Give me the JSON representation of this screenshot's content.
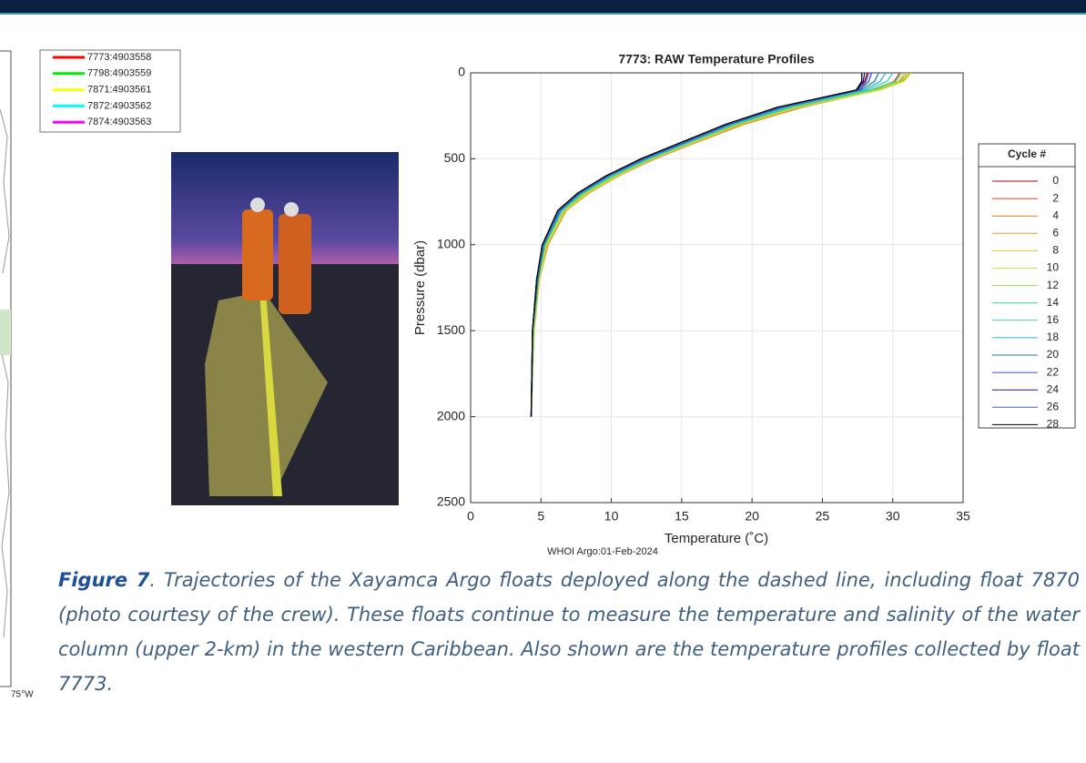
{
  "map": {
    "legend": [
      {
        "name": "7773:4903558",
        "color": "#ff0000"
      },
      {
        "name": "7798:4903559",
        "color": "#00ee00"
      },
      {
        "name": "7871:4903561",
        "color": "#ffff00"
      },
      {
        "name": "7872:4903562",
        "color": "#00ffff"
      },
      {
        "name": "7874:4903563",
        "color": "#ff00ff"
      }
    ],
    "lon_label": "75°W"
  },
  "chart_data": {
    "type": "line",
    "title": "7773: RAW Temperature Profiles",
    "xlabel": "Temperature (˚C)",
    "ylabel": "Pressure (dbar)",
    "footer": "WHOI Argo:01-Feb-2024",
    "xlim": [
      0,
      35
    ],
    "ylim": [
      0,
      2500
    ],
    "y_reversed": true,
    "xticks": [
      0,
      5,
      10,
      15,
      20,
      25,
      30,
      35
    ],
    "yticks": [
      0,
      500,
      1000,
      1500,
      2000,
      2500
    ],
    "grid": true,
    "legend_title": "Cycle #",
    "pressure": [
      0,
      50,
      100,
      200,
      300,
      400,
      500,
      600,
      700,
      800,
      1000,
      1200,
      1500,
      2000
    ],
    "series": [
      {
        "name": "0",
        "color": "#b00000",
        "values": [
          28.2,
          28.0,
          27.4,
          22.6,
          18.9,
          15.9,
          12.8,
          10.3,
          8.2,
          6.7,
          5.4,
          4.9,
          4.5,
          4.3
        ]
      },
      {
        "name": "2",
        "color": "#e8392b",
        "values": [
          30.5,
          30.1,
          28.6,
          23.4,
          19.2,
          16.1,
          13.0,
          10.4,
          8.3,
          6.8,
          5.4,
          4.9,
          4.5,
          4.3
        ]
      },
      {
        "name": "4",
        "color": "#f07a2a",
        "values": [
          31.0,
          30.5,
          28.9,
          23.6,
          19.4,
          16.2,
          13.1,
          10.5,
          8.3,
          6.8,
          5.5,
          4.9,
          4.5,
          4.3
        ]
      },
      {
        "name": "6",
        "color": "#e0a020",
        "values": [
          31.2,
          30.7,
          29.0,
          23.5,
          19.3,
          16.1,
          13.0,
          10.5,
          8.4,
          6.8,
          5.5,
          4.9,
          4.5,
          4.3
        ]
      },
      {
        "name": "8",
        "color": "#e0cc30",
        "values": [
          30.8,
          30.4,
          28.8,
          23.3,
          19.1,
          16.0,
          12.9,
          10.4,
          8.3,
          6.7,
          5.4,
          4.9,
          4.5,
          4.3
        ]
      },
      {
        "name": "10",
        "color": "#cfe040",
        "values": [
          31.3,
          30.8,
          29.1,
          23.2,
          19.0,
          16.0,
          12.9,
          10.3,
          8.2,
          6.7,
          5.4,
          4.9,
          4.5,
          4.3
        ]
      },
      {
        "name": "12",
        "color": "#90dd50",
        "values": [
          31.0,
          30.6,
          28.7,
          23.0,
          18.9,
          15.8,
          12.8,
          10.2,
          8.1,
          6.6,
          5.3,
          4.8,
          4.5,
          4.3
        ]
      },
      {
        "name": "14",
        "color": "#40d080",
        "values": [
          30.6,
          30.2,
          28.4,
          22.8,
          18.8,
          15.7,
          12.7,
          10.1,
          8.0,
          6.5,
          5.3,
          4.8,
          4.4,
          4.3
        ]
      },
      {
        "name": "16",
        "color": "#40d0c0",
        "values": [
          30.0,
          29.6,
          28.1,
          22.6,
          18.6,
          15.6,
          12.6,
          10.0,
          7.9,
          6.5,
          5.2,
          4.8,
          4.4,
          4.3
        ]
      },
      {
        "name": "18",
        "color": "#30b0d8",
        "values": [
          29.5,
          29.1,
          27.9,
          22.4,
          18.5,
          15.5,
          12.5,
          9.9,
          7.8,
          6.4,
          5.2,
          4.8,
          4.4,
          4.3
        ]
      },
      {
        "name": "20",
        "color": "#207fa0",
        "values": [
          29.0,
          28.7,
          27.7,
          22.2,
          18.4,
          15.4,
          12.4,
          9.8,
          7.8,
          6.4,
          5.2,
          4.8,
          4.4,
          4.3
        ]
      },
      {
        "name": "22",
        "color": "#3050e0",
        "values": [
          28.5,
          28.3,
          27.6,
          22.0,
          18.3,
          15.3,
          12.3,
          9.7,
          7.7,
          6.3,
          5.1,
          4.7,
          4.4,
          4.3
        ]
      },
      {
        "name": "24",
        "color": "#1c1c80",
        "values": [
          28.0,
          27.9,
          27.5,
          21.9,
          18.2,
          15.2,
          12.2,
          9.6,
          7.6,
          6.3,
          5.1,
          4.7,
          4.4,
          4.3
        ]
      },
      {
        "name": "26",
        "color": "#4060c8",
        "values": [
          28.3,
          28.1,
          27.6,
          22.1,
          18.3,
          15.3,
          12.3,
          9.7,
          7.7,
          6.3,
          5.1,
          4.7,
          4.4,
          4.3
        ]
      },
      {
        "name": "28",
        "color": "#000000",
        "values": [
          27.8,
          27.8,
          27.4,
          21.8,
          18.1,
          15.1,
          12.1,
          9.6,
          7.6,
          6.2,
          5.1,
          4.7,
          4.4,
          4.3
        ]
      }
    ]
  },
  "caption": {
    "label": "Figure 7",
    "text": ". Trajectories of the Xayamca Argo floats deployed  along the dashed line, including float 7870 (photo courtesy of the crew). These floats continue to measure the temperature and salinity of the water column (upper 2-km) in the western Caribbean. Also shown are the temperature profiles collected by float 7773."
  }
}
